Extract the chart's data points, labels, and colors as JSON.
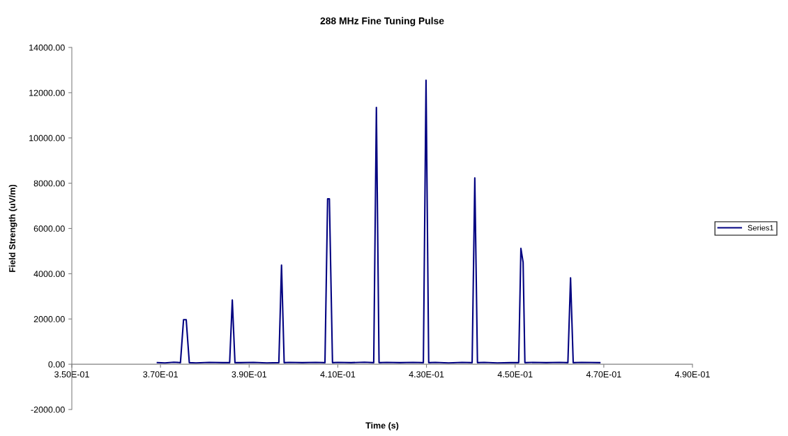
{
  "chart_data": {
    "type": "line",
    "title": "288 MHz Fine Tuning Pulse",
    "xlabel": "Time (s)",
    "ylabel": "Field Strength (uV/m)",
    "xlim": [
      0.35,
      0.49
    ],
    "xticks": [
      {
        "value": 0.35,
        "label": "3.50E-01"
      },
      {
        "value": 0.37,
        "label": "3.70E-01"
      },
      {
        "value": 0.39,
        "label": "3.90E-01"
      },
      {
        "value": 0.41,
        "label": "4.10E-01"
      },
      {
        "value": 0.43,
        "label": "4.30E-01"
      },
      {
        "value": 0.45,
        "label": "4.50E-01"
      },
      {
        "value": 0.47,
        "label": "4.70E-01"
      },
      {
        "value": 0.49,
        "label": "4.90E-01"
      }
    ],
    "ylim": [
      -2000,
      14000
    ],
    "yticks": [
      {
        "value": -2000,
        "label": "-2000.00"
      },
      {
        "value": 0,
        "label": "0.00"
      },
      {
        "value": 2000,
        "label": "2000.00"
      },
      {
        "value": 4000,
        "label": "4000.00"
      },
      {
        "value": 6000,
        "label": "6000.00"
      },
      {
        "value": 8000,
        "label": "8000.00"
      },
      {
        "value": 10000,
        "label": "10000.00"
      },
      {
        "value": 12000,
        "label": "12000.00"
      },
      {
        "value": 14000,
        "label": "14000.00"
      }
    ],
    "grid": false,
    "legend": "right",
    "marker": "none",
    "line_style": "solid",
    "series": [
      {
        "name": "Series1",
        "color": "#000080",
        "x": [
          0.3693,
          0.371,
          0.373,
          0.3745,
          0.3752,
          0.3758,
          0.3765,
          0.378,
          0.381,
          0.384,
          0.3856,
          0.3862,
          0.3868,
          0.388,
          0.391,
          0.394,
          0.3967,
          0.3973,
          0.3979,
          0.399,
          0.402,
          0.405,
          0.4071,
          0.4077,
          0.4081,
          0.4088,
          0.41,
          0.413,
          0.416,
          0.4181,
          0.4187,
          0.4193,
          0.421,
          0.424,
          0.427,
          0.4293,
          0.4299,
          0.4305,
          0.432,
          0.435,
          0.438,
          0.4403,
          0.4409,
          0.4415,
          0.443,
          0.446,
          0.449,
          0.4508,
          0.4513,
          0.4518,
          0.4522,
          0.454,
          0.457,
          0.46,
          0.4619,
          0.4625,
          0.4631,
          0.465,
          0.4691
        ],
        "values": [
          70,
          60,
          90,
          70,
          1970,
          1970,
          70,
          60,
          80,
          70,
          70,
          2840,
          70,
          70,
          80,
          60,
          70,
          4380,
          70,
          80,
          70,
          80,
          70,
          7310,
          7310,
          70,
          80,
          70,
          90,
          70,
          11350,
          70,
          80,
          70,
          80,
          70,
          12550,
          70,
          80,
          60,
          80,
          70,
          8230,
          70,
          80,
          60,
          70,
          70,
          5120,
          4500,
          70,
          80,
          70,
          80,
          70,
          3820,
          70,
          80,
          70
        ]
      }
    ]
  }
}
